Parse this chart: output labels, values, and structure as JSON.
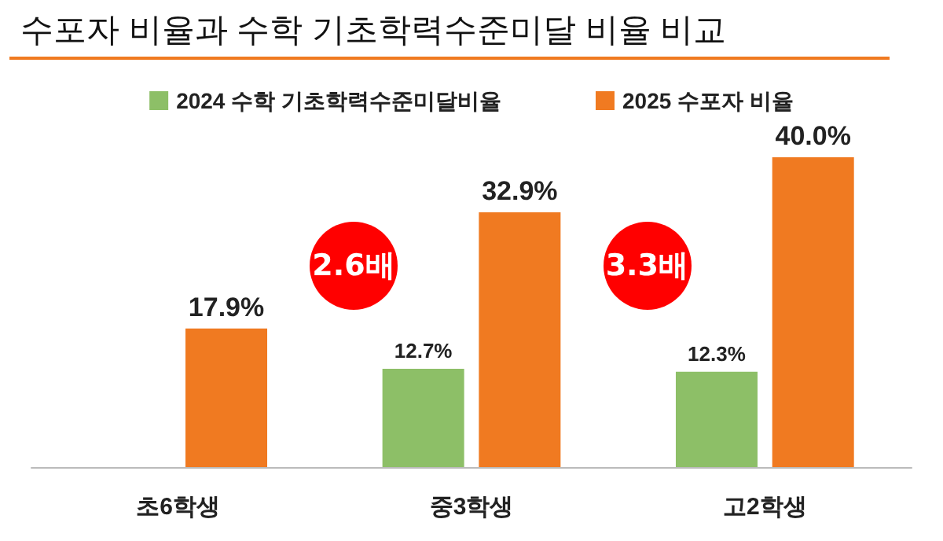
{
  "chart_data": {
    "type": "bar",
    "title": "수포자 비율과 수학 기초학력수준미달 비율 비교",
    "categories": [
      "초6학생",
      "중3학생",
      "고2학생"
    ],
    "series": [
      {
        "name": "2024 수학 기초학력수준미달비율",
        "color": "#8dbf67",
        "values": [
          null,
          12.7,
          12.3
        ],
        "value_labels": [
          null,
          "12.7%",
          "12.3%"
        ]
      },
      {
        "name": "2025 수포자 비율",
        "color": "#f07a21",
        "values": [
          17.9,
          32.9,
          40.0
        ],
        "value_labels": [
          "17.9%",
          "32.9%",
          "40.0%"
        ]
      }
    ],
    "annotations": [
      {
        "text": "2.6배",
        "x": "중3학생",
        "y": 26
      },
      {
        "text": "3.3배",
        "x": "고2학생",
        "y": 26
      }
    ],
    "legend": "top"
  }
}
